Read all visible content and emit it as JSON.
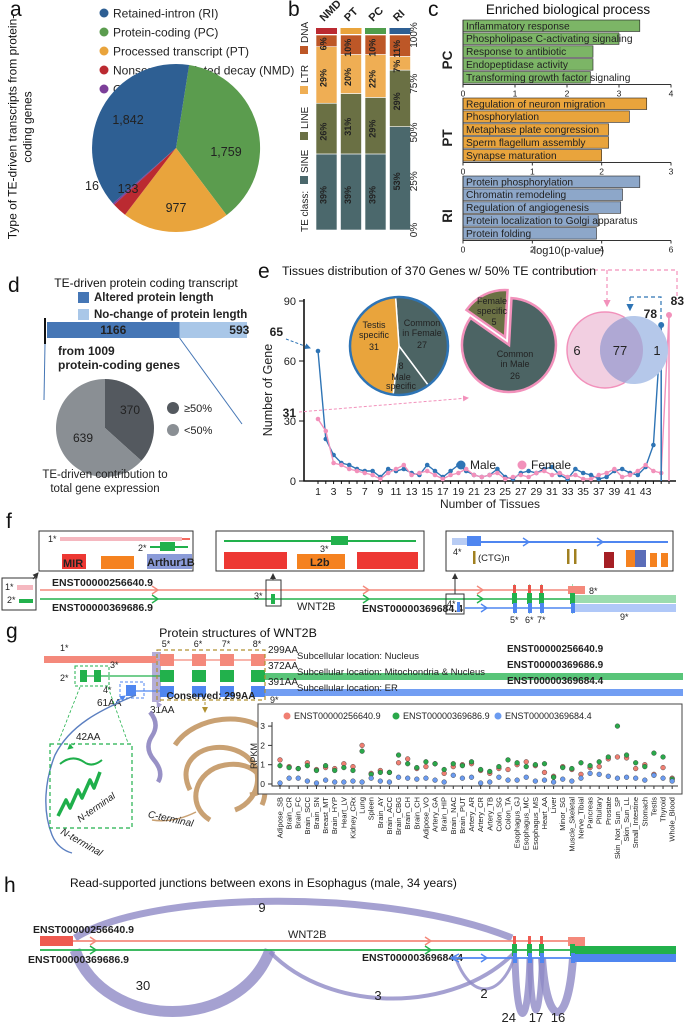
{
  "panels": {
    "a": {
      "letter": "a",
      "rotated_label": "Type of TE-driven transcripts from protein-coding genes"
    },
    "b": {
      "letter": "b"
    },
    "c": {
      "letter": "c",
      "title": "Enriched biological process",
      "xlabel": "-log10(p-value)"
    },
    "d": {
      "letter": "d",
      "title": "TE-driven protein coding transcript",
      "legend": [
        {
          "label": "Altered protein length",
          "color": "#4576b5"
        },
        {
          "label": "No-change of protein length",
          "color": "#a9c7e8"
        }
      ],
      "note_lines": [
        "from 1009",
        "protein-coding genes"
      ],
      "caption_lines": [
        "TE-driven contribution to",
        "total gene expression"
      ]
    },
    "e": {
      "letter": "e",
      "title": "Tissues distribution of 370 Genes w/ 50% TE contribution"
    },
    "f": {
      "letter": "f",
      "transcripts": [
        {
          "id": "ENST00000256640.9",
          "color": "#f4695e"
        },
        {
          "id": "ENST00000369686.9",
          "color": "#22b14c"
        },
        {
          "id": "ENST00000369684.4",
          "color": "#4f86f0"
        }
      ],
      "gene": "WNT2B",
      "markers": [
        "1*",
        "2*",
        "3*",
        "4*",
        "5*",
        "6*",
        "7*",
        "8*",
        "9*"
      ],
      "repeats": {
        "mir": "MIR",
        "arthur": "Arthur1B",
        "l2b": "L2b",
        "ctg": "(CTG)n"
      }
    },
    "g": {
      "letter": "g",
      "title": "Protein structures of WNT2B",
      "lengths": [
        "299AA",
        "372AA",
        "391AA"
      ],
      "conserved": "Conserved: 299AA",
      "fragments": [
        {
          "label": "61AA",
          "color": "#4f86f0"
        },
        {
          "label": "31AA",
          "color": "#a79fd0"
        },
        {
          "label": "42AA",
          "color": "#22b14c"
        }
      ],
      "locations": [
        {
          "label": "Subcellular location: Nucleus",
          "color": "#c0392b"
        },
        {
          "label": "Subcellular location: Mitochondria & Nucleus",
          "color": "#2e7d32"
        },
        {
          "label": "Subcellular location: ER",
          "color": "#4f86f0"
        }
      ],
      "terminals": {
        "n_green": "N-terminal",
        "n_black": "N-terminal",
        "c": "C-terminal"
      }
    },
    "h": {
      "letter": "h",
      "title": "Read-supported junctions between exons in Esophagus (male, 34 years)"
    }
  },
  "chart_data": [
    {
      "id": "transcript-type-pie",
      "type": "pie",
      "start_angle": 9,
      "legend": [
        {
          "label": "Retained-intron (RI)",
          "color": "#2e5f93"
        },
        {
          "label": "Protein-coding (PC)",
          "color": "#5b9c4e"
        },
        {
          "label": "Processed transcript (PT)",
          "color": "#e9a43c"
        },
        {
          "label": "Nonsense-mediated decay (NMD)",
          "color": "#bb2a31"
        },
        {
          "label": "Other",
          "color": "#7c3f99"
        }
      ],
      "slices": [
        {
          "label": "Protein-coding (PC)",
          "value": 1759,
          "color": "#5b9c4e"
        },
        {
          "label": "Processed transcript (PT)",
          "value": 977,
          "color": "#e9a43c"
        },
        {
          "label": "Nonsense-mediated decay (NMD)",
          "value": 133,
          "color": "#bb2a31"
        },
        {
          "label": "Other",
          "value": 16,
          "color": "#7c3f99"
        },
        {
          "label": "Retained-intron (RI)",
          "value": 1842,
          "color": "#2e5f93"
        }
      ],
      "value_labels": [
        {
          "text": "1,842",
          "x": 128,
          "y": 124
        },
        {
          "text": "1,759",
          "x": 226,
          "y": 156
        },
        {
          "text": "977",
          "x": 176,
          "y": 212
        },
        {
          "text": "133",
          "x": 128,
          "y": 193
        },
        {
          "text": "16",
          "x": 92,
          "y": 190
        }
      ]
    },
    {
      "id": "te-class-stacked-bars",
      "type": "bar",
      "legend_title": "TE class:",
      "categories": [
        "NMD",
        "PT",
        "PC",
        "RI"
      ],
      "category_colors": [
        "#bb2a31",
        "#e9a43c",
        "#4f9d4b",
        "#2e5f93"
      ],
      "series": [
        {
          "name": "SINE",
          "color": "#4b686c",
          "values": [
            39,
            39,
            39,
            53
          ]
        },
        {
          "name": "LINE",
          "color": "#6a7044",
          "values": [
            26,
            31,
            29,
            29
          ]
        },
        {
          "name": "LTR",
          "color": "#efae54",
          "values": [
            29,
            20,
            22,
            7
          ]
        },
        {
          "name": "DNA",
          "color": "#bd5727",
          "values": [
            6,
            10,
            10,
            11
          ]
        }
      ],
      "yticks": [
        "0%",
        "25%",
        "50%",
        "75%",
        "100%"
      ]
    },
    {
      "id": "enriched-bp",
      "type": "bar",
      "xlabel": "-log10(p-value)",
      "groups": [
        {
          "name": "PC",
          "color": "#7cb566",
          "label_color": "#4f9d4b",
          "ticks": [
            0,
            1,
            2,
            3,
            4
          ],
          "items": [
            "Inflammatory response",
            "Phospholipase C-activating signaling",
            "Response to antibiotic",
            "Endopeptidase activity",
            "Transforming growth factor signaling"
          ],
          "values": [
            3.4,
            3.0,
            2.5,
            2.5,
            2.45
          ]
        },
        {
          "name": "PT",
          "color": "#e9a43c",
          "label_color": "#e8961f",
          "ticks": [
            0,
            1,
            2,
            3
          ],
          "items": [
            "Regulation of neuron migration",
            "Phosphorylation",
            "Metaphase plate congression",
            "Sperm flagellum assembly",
            "Synapse maturation"
          ],
          "values": [
            2.65,
            2.4,
            2.1,
            2.1,
            2.0
          ]
        },
        {
          "name": "RI",
          "color": "#8da7c9",
          "label_color": "#4a7ab5",
          "ticks": [
            0,
            2,
            4,
            6
          ],
          "items": [
            "Protein phosphorylation",
            "Chromatin remodeling",
            "Regulation of angiogenesis",
            "Protein localization to Golgi apparatus",
            "Protein folding"
          ],
          "values": [
            5.1,
            4.6,
            4.55,
            3.9,
            3.85
          ]
        }
      ]
    },
    {
      "id": "protein-length-bar",
      "type": "bar",
      "segments": [
        {
          "label": "Altered protein length",
          "value": 1166,
          "color": "#4576b5"
        },
        {
          "label": "No-change of protein length",
          "value": 593,
          "color": "#a9c7e8"
        }
      ]
    },
    {
      "id": "te-contribution-pie",
      "type": "pie",
      "slices": [
        {
          "label": "≥50%",
          "value": 370,
          "color": "#54595f"
        },
        {
          "label": "<50%",
          "value": 639,
          "color": "#8a8f94"
        }
      ]
    },
    {
      "id": "tissue-distribution",
      "type": "line",
      "title": "Tissues distribution of 370 Genes w/ 50% TE contribution",
      "xlabel": "Number of Tissues",
      "ylabel": "Number of Gene",
      "yticks": [
        0,
        30,
        60,
        90
      ],
      "xtick_labels": [
        1,
        3,
        5,
        7,
        9,
        11,
        13,
        15,
        17,
        19,
        21,
        23,
        25,
        27,
        29,
        31,
        33,
        35,
        37,
        39,
        41,
        43
      ],
      "series": [
        {
          "name": "Male",
          "color": "#2e74b5",
          "values": [
            65,
            21,
            13,
            9,
            8,
            6,
            5,
            5,
            2,
            6,
            5,
            6,
            4,
            3,
            8,
            5,
            2,
            5,
            8,
            5,
            3,
            2,
            3,
            6,
            2,
            1,
            4,
            5,
            4,
            6,
            7,
            3,
            1,
            6,
            4,
            3,
            1,
            2,
            5,
            6,
            4,
            3,
            7,
            18,
            78
          ]
        },
        {
          "name": "Female",
          "color": "#f291bb",
          "values": [
            31,
            25,
            9,
            8,
            6,
            5,
            4,
            3,
            1,
            4,
            6,
            8,
            3,
            4,
            5,
            3,
            1,
            3,
            4,
            6,
            3,
            2,
            3,
            4,
            1,
            2,
            3,
            2,
            4,
            5,
            3,
            4,
            2,
            3,
            1,
            1,
            3,
            4,
            6,
            2,
            3,
            5,
            8,
            5,
            4,
            83
          ]
        }
      ],
      "annotations": {
        "male_start": "65",
        "female_start": "31",
        "male_end": "78",
        "female_end": "83"
      },
      "male_pie": {
        "outline": "#2e74b5",
        "slices": [
          {
            "label_lines": [
              "Common",
              "in Female"
            ],
            "value": 27,
            "color": "#4c6464"
          },
          {
            "label_lines": [
              "8",
              "Male",
              "specific"
            ],
            "value": 8,
            "color": "#4c6464"
          },
          {
            "label_lines": [
              "Testis",
              "specific"
            ],
            "value": 31,
            "color": "#e9a43c"
          }
        ],
        "value_labels": [
          "27",
          "8",
          "31"
        ]
      },
      "female_pie": {
        "outline": "#f291bb",
        "slices": [
          {
            "label_lines": [
              "Common",
              "in Male"
            ],
            "value": 26,
            "color": "#4c6464"
          },
          {
            "label_lines": [
              "Female",
              "specific"
            ],
            "value": 5,
            "color": "#6b7144"
          }
        ],
        "value_labels": [
          "26",
          "5"
        ]
      },
      "venn": {
        "left": "6",
        "overlap": "77",
        "right": "1",
        "left_color": "#f2cfe1",
        "right_color": "#b5c8ea",
        "overlap_color": "#afa8d4"
      }
    },
    {
      "id": "rpkm-scatter",
      "type": "scatter",
      "ylabel": "RPKM",
      "yticks": [
        0,
        1,
        2,
        3
      ],
      "tissues": [
        "Adipose_SB",
        "Brain_CR",
        "Brain_FC",
        "Brain_SCC",
        "Brain_SN",
        "Breast_MT",
        "Brain_HYP",
        "Heart_LV",
        "Kidney_CRx",
        "Lung",
        "Spleen",
        "Brain_AY",
        "Brain_ACC",
        "Brain_CBG",
        "Brain_CH",
        "Brain_CH",
        "Adipose_VO",
        "Artery_GA",
        "Brain_HIP",
        "Brain_NAC",
        "Brain_PUT",
        "Artery_AR",
        "Artery_CR",
        "Artery_TB",
        "Colon_SG",
        "Colon_TA",
        "Esophagus_GJ",
        "Esophagus_MC",
        "Esophagus_MS",
        "Heart_AA",
        "Liver",
        "Minor_SG",
        "Muscle_Skeletal",
        "Nerve_Tibial",
        "Pancreas",
        "Pituitary",
        "Prostate",
        "Skin_Not_Sun_SP",
        "Skin_Sun_LL",
        "Small_Intestine",
        "Stomach",
        "Testis",
        "Thyroid",
        "Whole_Blood"
      ],
      "series": [
        {
          "name": "ENST00000256640.9",
          "color": "#f07f72",
          "values": [
            1.25,
            0.9,
            0.8,
            1.1,
            0.75,
            0.85,
            0.8,
            1.05,
            0.9,
            2.0,
            0.55,
            0.7,
            0.6,
            1.1,
            1.3,
            0.8,
            0.9,
            1.05,
            0.55,
            0.9,
            1.0,
            1.05,
            0.7,
            0.55,
            0.8,
            0.75,
            1.0,
            1.15,
            0.95,
            0.6,
            0.4,
            0.9,
            0.75,
            0.5,
            0.85,
            0.9,
            1.3,
            1.4,
            1.35,
            0.8,
            1.0,
            0.5,
            0.85,
            0.3
          ]
        },
        {
          "name": "ENST00000369686.9",
          "color": "#2aa84a",
          "values": [
            0.95,
            0.85,
            0.8,
            0.95,
            0.7,
            0.95,
            0.7,
            0.85,
            0.7,
            1.7,
            0.5,
            0.6,
            0.6,
            1.5,
            1.05,
            0.85,
            1.15,
            1.05,
            0.75,
            1.05,
            0.95,
            1.15,
            0.75,
            0.65,
            0.9,
            1.25,
            1.1,
            0.9,
            1.0,
            1.05,
            0.35,
            0.85,
            0.8,
            1.1,
            0.95,
            1.15,
            1.4,
            3.0,
            1.5,
            1.1,
            0.9,
            1.6,
            1.4,
            0.25
          ]
        },
        {
          "name": "ENST00000369684.4",
          "color": "#6b9bf0",
          "values": [
            0.05,
            0.3,
            0.3,
            0.15,
            0.05,
            0.2,
            0.1,
            0.1,
            0.15,
            0.1,
            0.3,
            0.15,
            0.1,
            0.35,
            0.3,
            0.25,
            0.3,
            0.2,
            0.1,
            0.45,
            0.3,
            0.35,
            0.05,
            0.1,
            0.35,
            0.2,
            0.2,
            0.35,
            0.15,
            0.2,
            0.1,
            0.25,
            0.15,
            0.3,
            0.55,
            0.5,
            0.4,
            0.3,
            0.35,
            0.3,
            0.2,
            0.45,
            0.3,
            0.15
          ]
        }
      ]
    },
    {
      "id": "junctions",
      "type": "arc",
      "color": "#8f89c5",
      "counts": [
        "9",
        "30",
        "3",
        "2",
        "24",
        "17",
        "16"
      ]
    }
  ]
}
